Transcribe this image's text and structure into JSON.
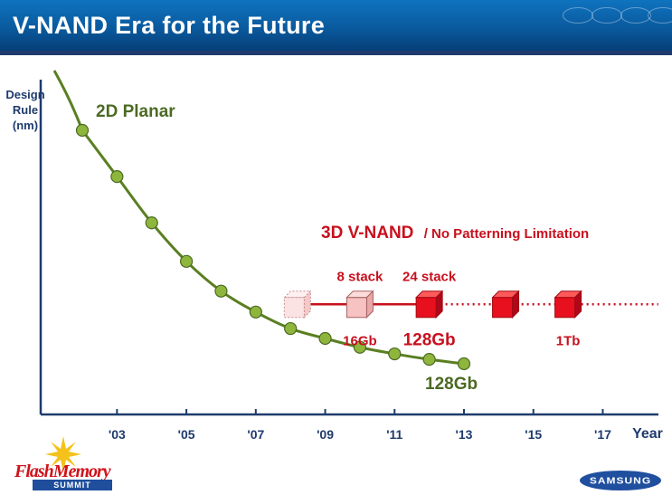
{
  "title": "V-NAND Era for the Future",
  "colors": {
    "accent_green": "#5a7f22",
    "accent_red": "#c8101e",
    "navy": "#1f3b6d"
  },
  "chart_data": {
    "type": "line",
    "ylabel": [
      "Design",
      "Rule",
      "(nm)"
    ],
    "xlabel": "Year",
    "x_ticks": [
      "'03",
      "'05",
      "'07",
      "'09",
      "'11",
      "'13",
      "'15",
      "'17"
    ],
    "planar": {
      "label": "2D Planar",
      "end_label": "128Gb",
      "points": [
        {
          "year": 2002.0,
          "v": 21.5
        },
        {
          "year": 2003.0,
          "v": 17.3
        },
        {
          "year": 2004.0,
          "v": 13.1
        },
        {
          "year": 2005.0,
          "v": 9.6
        },
        {
          "year": 2006.0,
          "v": 6.9
        },
        {
          "year": 2007.0,
          "v": 5.0
        },
        {
          "year": 2008.0,
          "v": 3.5
        },
        {
          "year": 2009.0,
          "v": 2.6
        },
        {
          "year": 2010.0,
          "v": 1.8
        },
        {
          "year": 2011.0,
          "v": 1.2
        },
        {
          "year": 2012.0,
          "v": 0.7
        },
        {
          "year": 2013.0,
          "v": 0.3
        }
      ]
    },
    "vnand": {
      "title_bold": "3D V-NAND",
      "title_rest": "/ No Patterning Limitation",
      "v": 5.7,
      "solid_from": 2008.2,
      "solid_to": 2012.0,
      "dotted_to": 2018.6,
      "cubes": [
        {
          "year": 2008.2,
          "style": "ghost",
          "stack": "",
          "capacity": ""
        },
        {
          "year": 2010.0,
          "style": "pale",
          "stack": "8 stack",
          "capacity": "16Gb"
        },
        {
          "year": 2012.0,
          "style": "solid",
          "stack": "24 stack",
          "capacity": "128Gb"
        },
        {
          "year": 2014.2,
          "style": "solid",
          "stack": "",
          "capacity": ""
        },
        {
          "year": 2016.0,
          "style": "solid",
          "stack": "",
          "capacity": "1Tb"
        }
      ]
    }
  },
  "footer": {
    "event_logo_main": "FlashMemory",
    "event_logo_sub": "SUMMIT",
    "brand_logo": "SAMSUNG"
  }
}
